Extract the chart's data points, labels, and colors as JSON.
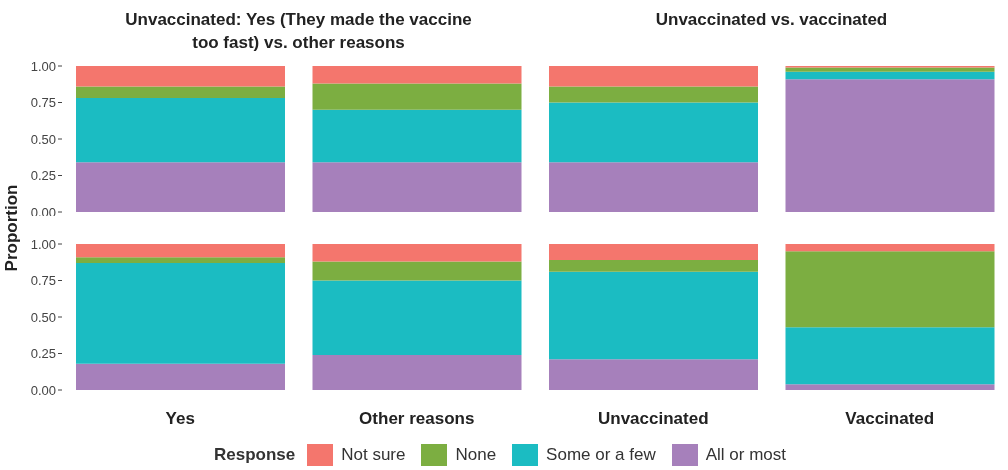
{
  "chart_data": [
    {
      "type": "bar",
      "stacked": true,
      "annotations": [
        "Unvaccinated: Yes (They made the vaccine too fast) vs. other reasons",
        "Unvaccinated vs. vaccinated"
      ],
      "ylabel": "Proportion",
      "categories": [
        null,
        null,
        null,
        null
      ],
      "tick_labels": "y",
      "ylim": [
        0,
        1
      ],
      "yticks": [
        {
          "value": 0,
          "label": "0.00"
        },
        {
          "value": 0.25,
          "label": "0.25"
        },
        {
          "value": 0.5,
          "label": "0.50"
        },
        {
          "value": 0.75,
          "label": "0.75"
        },
        {
          "value": 1,
          "label": "1.00"
        }
      ],
      "series": [
        {
          "color": "#a680bb",
          "values": [
            0.34,
            0.34,
            0.34,
            0.91
          ]
        },
        {
          "color": "#1bbcc2",
          "values": [
            0.44,
            0.36,
            0.41,
            0.05
          ]
        },
        {
          "color": "#7cae41",
          "values": [
            0.08,
            0.18,
            0.11,
            0.03
          ]
        },
        {
          "color": "#f4766d",
          "values": [
            0.14,
            0.12,
            0.14,
            0.01
          ]
        }
      ]
    },
    {
      "type": "bar",
      "stacked": true,
      "categories": [
        "Yes",
        "Other reasons",
        "Unvaccinated",
        "Vaccinated"
      ],
      "ylim": [
        0,
        1
      ],
      "yticks": [
        {
          "value": 0,
          "label": "0.00"
        },
        {
          "value": 0.25,
          "label": "0.25"
        },
        {
          "value": 0.5,
          "label": "0.50"
        },
        {
          "value": 0.75,
          "label": "0.75"
        },
        {
          "value": 1,
          "label": "1.00"
        }
      ],
      "legend": "bottom",
      "legend_title": "Response",
      "series": [
        {
          "name": "All or most",
          "color": "#a680bb",
          "values": [
            0.18,
            0.24,
            0.21,
            0.04
          ]
        },
        {
          "name": "Some or a few",
          "color": "#1bbcc2",
          "values": [
            0.69,
            0.51,
            0.6,
            0.39
          ]
        },
        {
          "name": "None",
          "color": "#7cae41",
          "values": [
            0.04,
            0.13,
            0.08,
            0.52
          ]
        },
        {
          "name": "Not sure",
          "color": "#f4766d",
          "values": [
            0.09,
            0.12,
            0.11,
            0.05
          ]
        }
      ]
    }
  ]
}
